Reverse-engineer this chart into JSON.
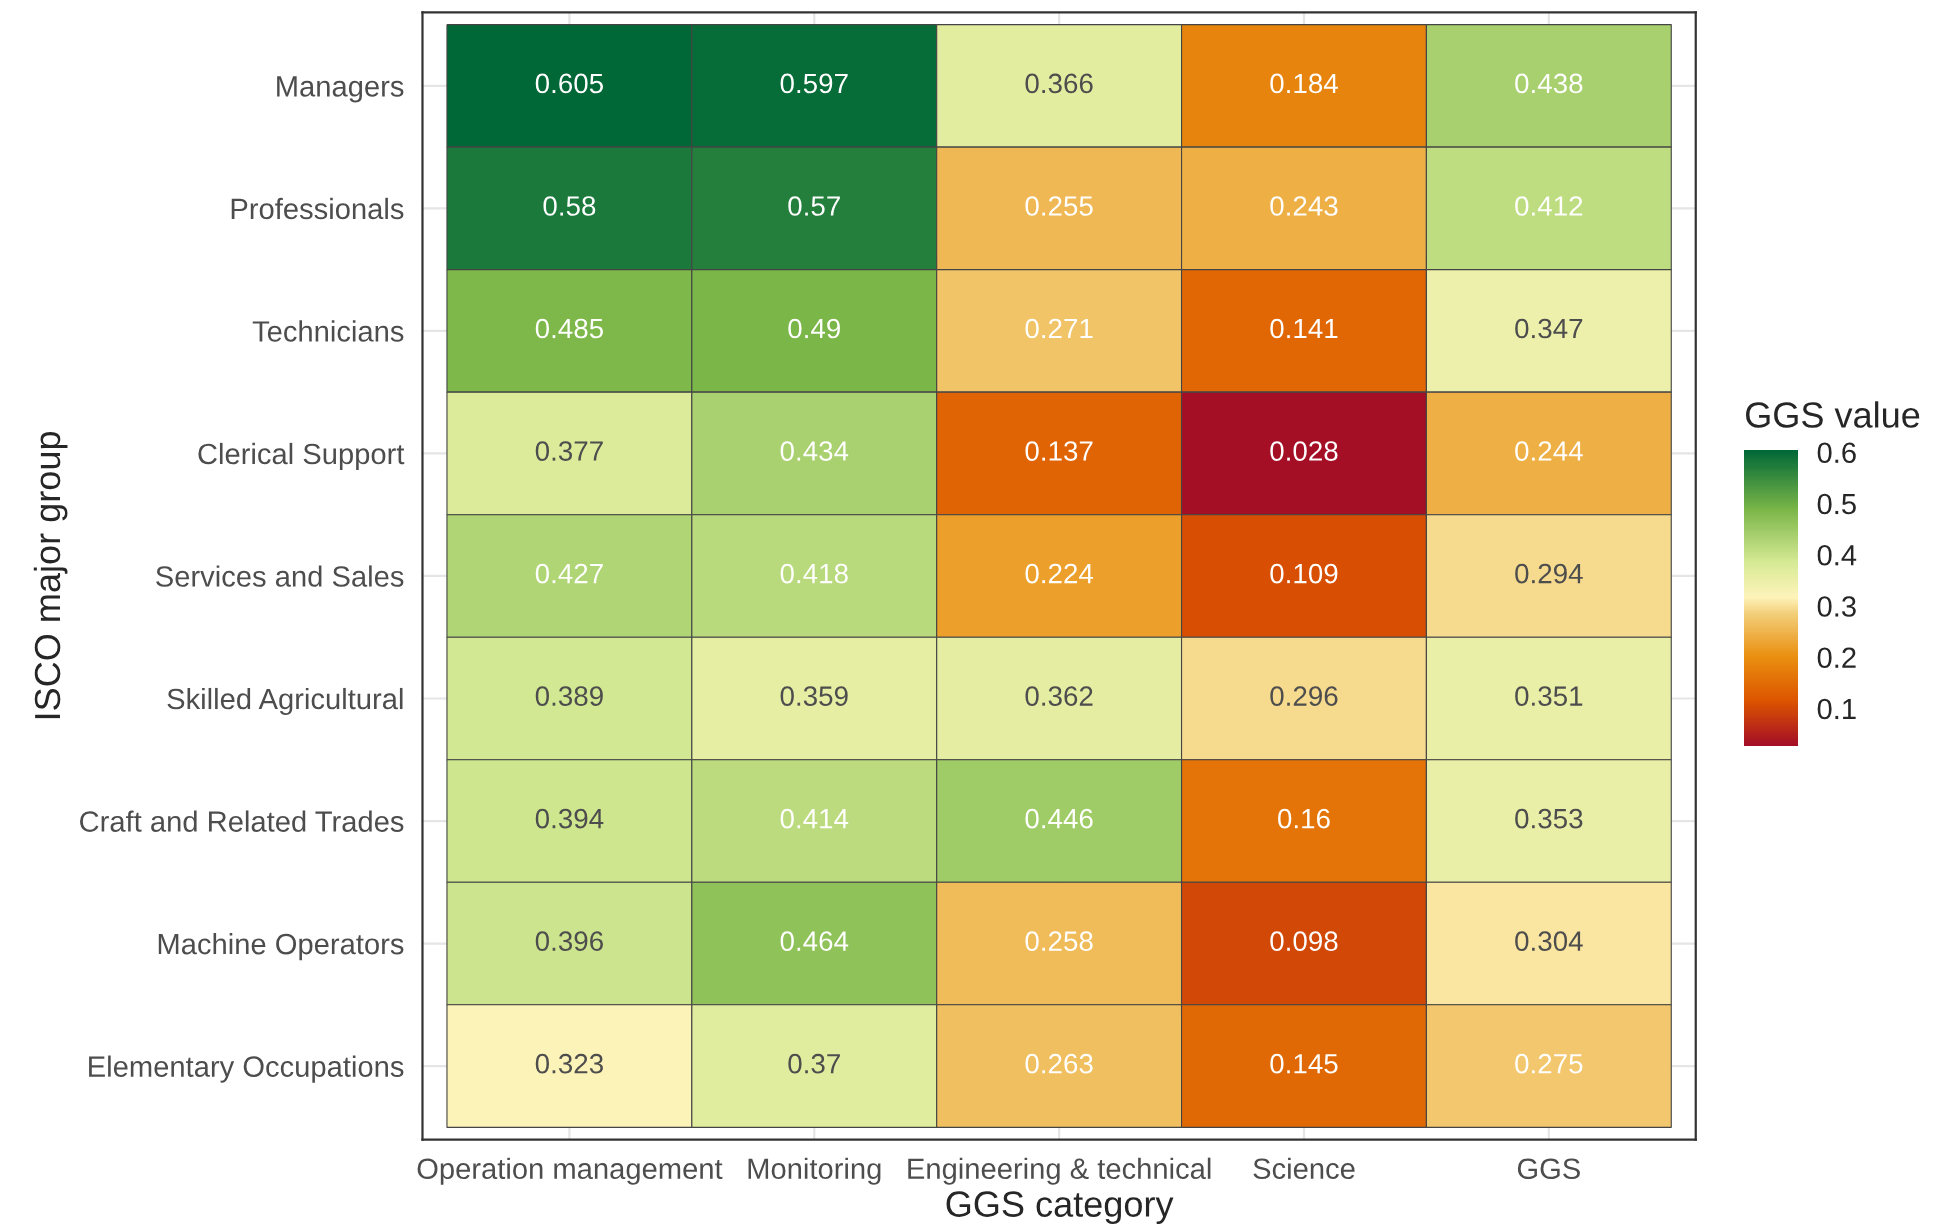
{
  "chart_data": {
    "type": "heatmap",
    "xlabel": "GGS category",
    "ylabel": "ISCO major group",
    "clabel": "GGS value",
    "categories": [
      "Operation management",
      "Monitoring",
      "Engineering & technical",
      "Science",
      "GGS"
    ],
    "y_categories": [
      "Managers",
      "Professionals",
      "Technicians",
      "Clerical Support",
      "Services and Sales",
      "Skilled Agricultural",
      "Craft and Related Trades",
      "Machine Operators",
      "Elementary Occupations"
    ],
    "cells": [
      [
        0.605,
        0.597,
        0.366,
        0.184,
        0.438
      ],
      [
        0.58,
        0.57,
        0.255,
        0.243,
        0.412
      ],
      [
        0.485,
        0.49,
        0.271,
        0.141,
        0.347
      ],
      [
        0.377,
        0.434,
        0.137,
        0.028,
        0.244
      ],
      [
        0.427,
        0.418,
        0.224,
        0.109,
        0.294
      ],
      [
        0.389,
        0.359,
        0.362,
        0.296,
        0.351
      ],
      [
        0.394,
        0.414,
        0.446,
        0.16,
        0.353
      ],
      [
        0.396,
        0.464,
        0.258,
        0.098,
        0.304
      ],
      [
        0.323,
        0.37,
        0.263,
        0.145,
        0.275
      ]
    ],
    "clim": [
      0.028,
      0.605
    ],
    "cticks": [
      0.1,
      0.2,
      0.3,
      0.4,
      0.5,
      0.6
    ],
    "data_labels": true,
    "grid": true
  }
}
